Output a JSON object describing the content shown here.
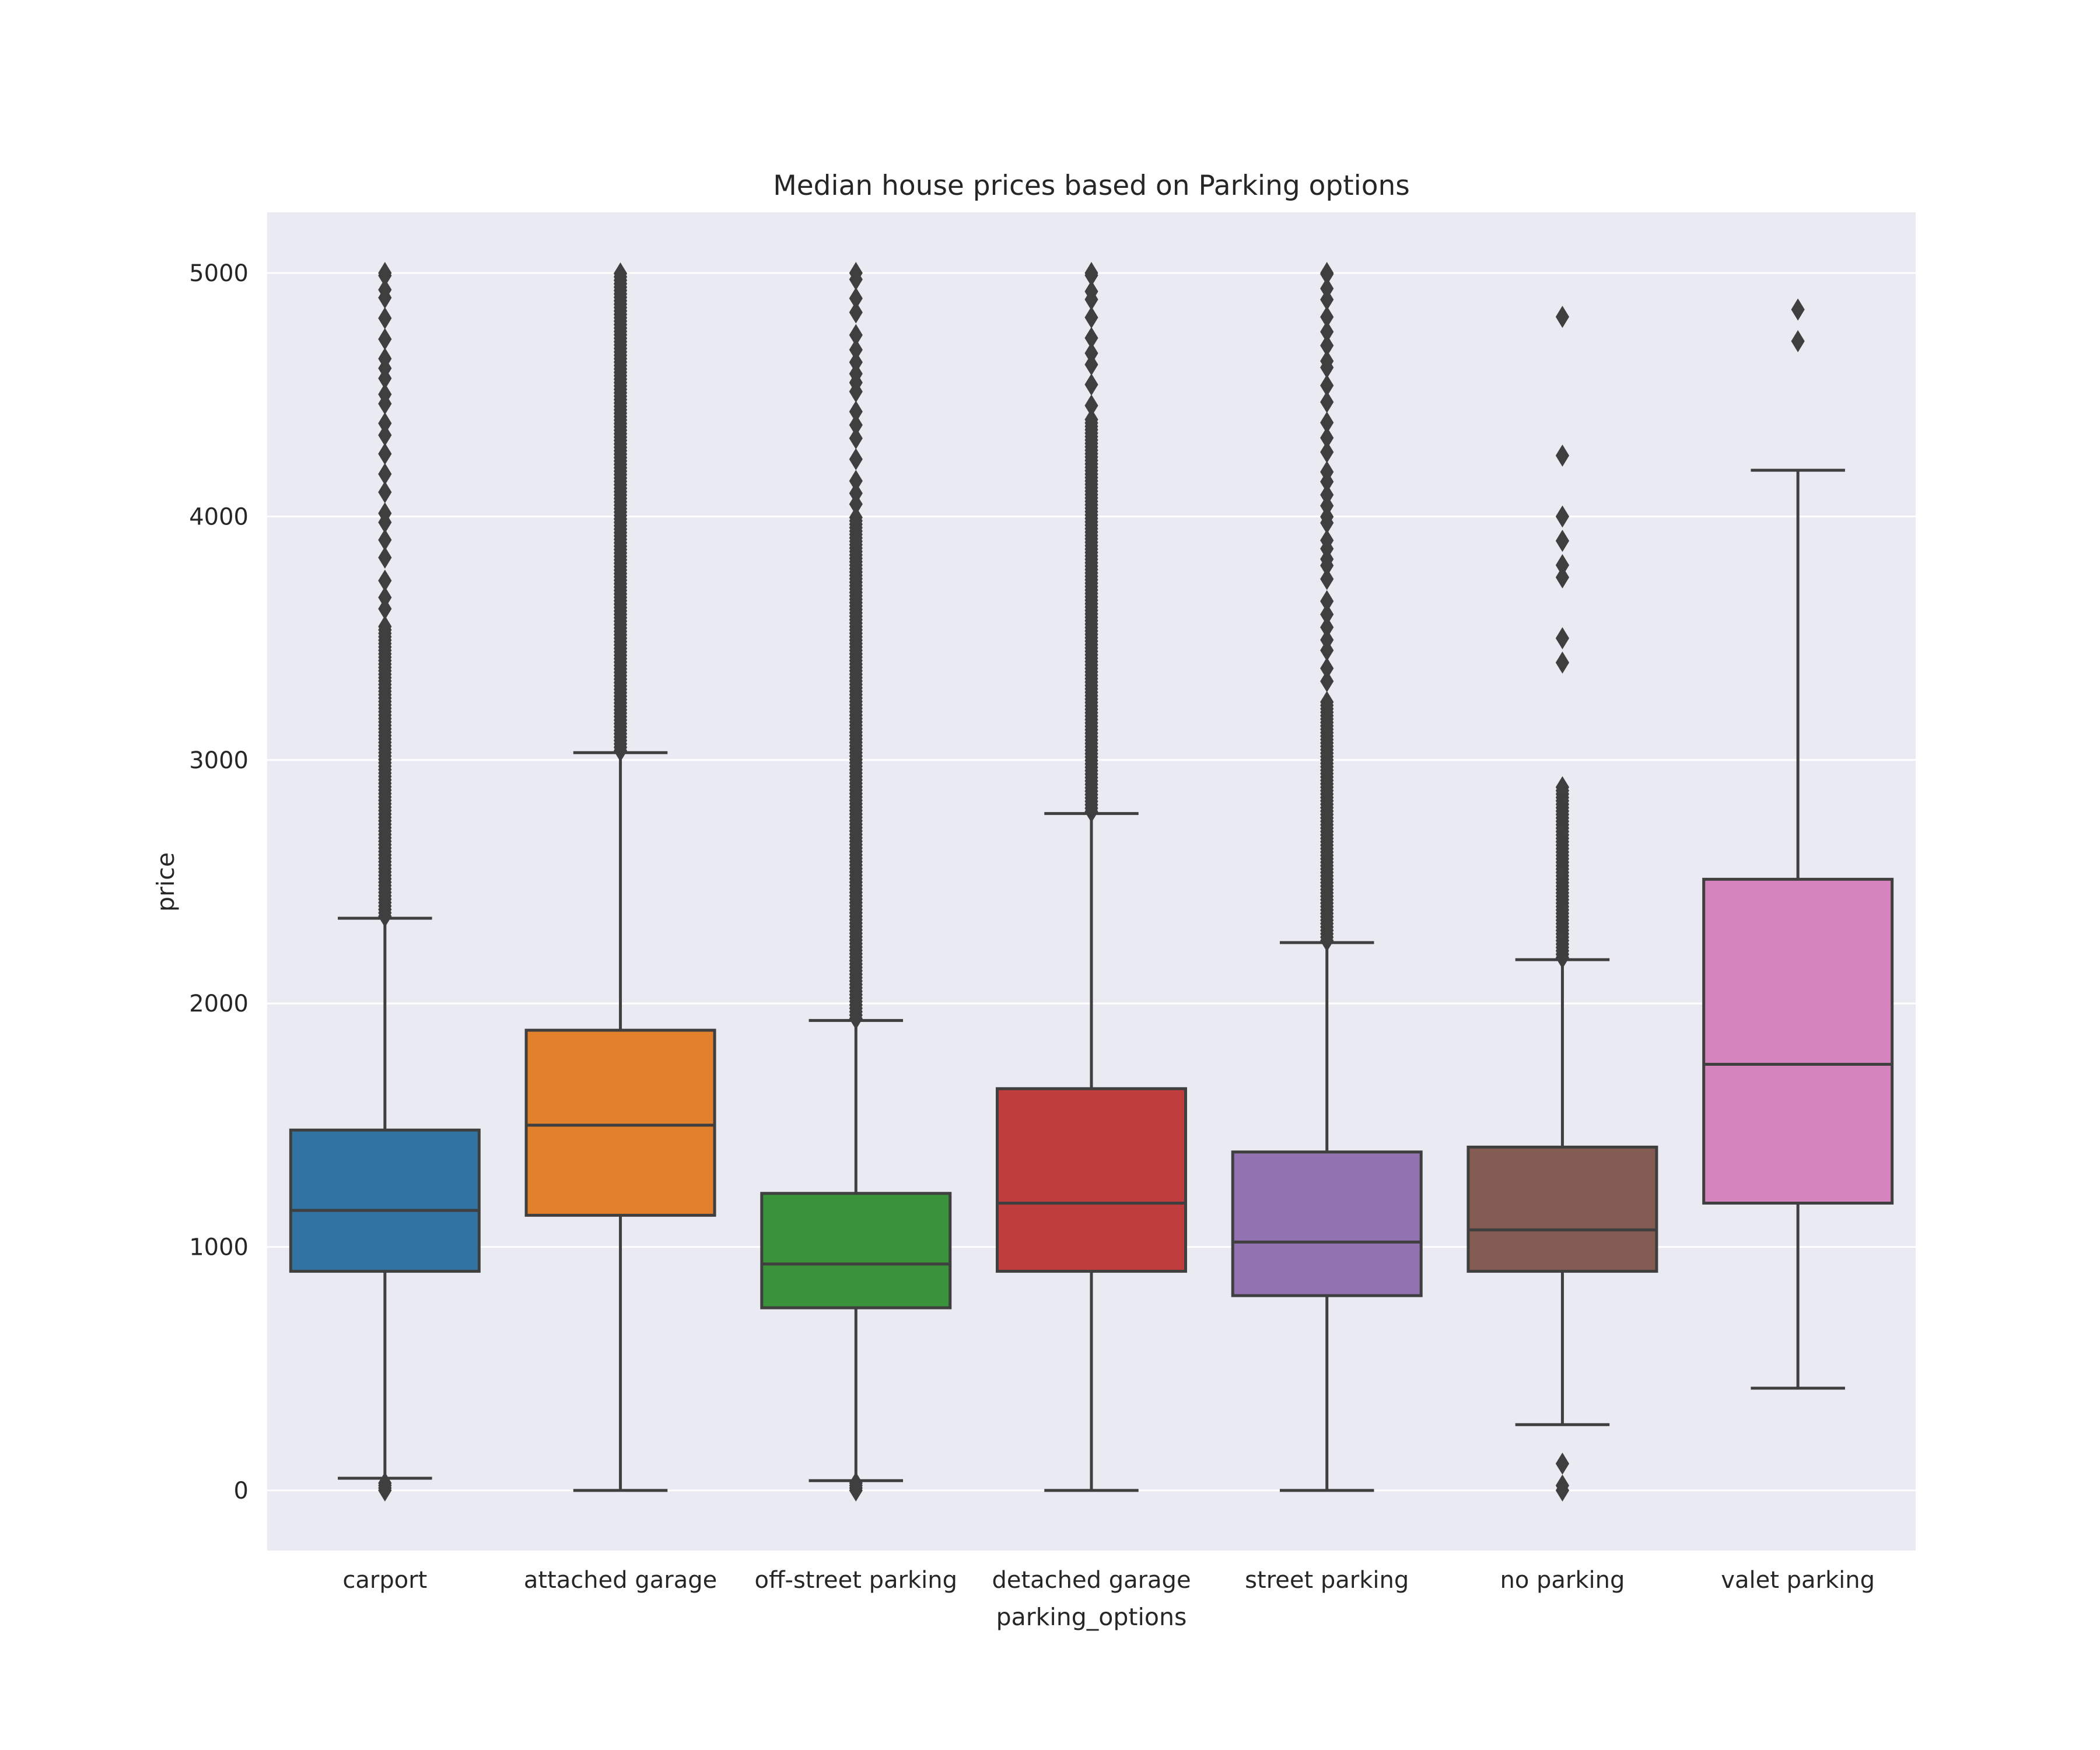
{
  "chart_data": {
    "type": "box",
    "title": "Median house prices based on Parking options",
    "xlabel": "parking_options",
    "ylabel": "price",
    "ylim": [
      -250,
      5250
    ],
    "yticks": [
      "0",
      "1000",
      "2000",
      "3000",
      "4000",
      "5000"
    ],
    "grid": true,
    "background": "#eaeaf2",
    "categories": [
      "carport",
      "attached garage",
      "off-street parking",
      "detached garage",
      "street parking",
      "no parking",
      "valet parking"
    ],
    "boxes": [
      {
        "category": "carport",
        "color": "#3274a1",
        "whisker_low": 50,
        "q1": 900,
        "median": 1150,
        "q3": 1480,
        "whisker_high": 2350,
        "outliers_low": [
          0,
          10,
          20,
          30
        ],
        "outliers_high_range": [
          2350,
          5000
        ],
        "outliers_high_dense_to": 3550
      },
      {
        "category": "attached garage",
        "color": "#e1812c",
        "whisker_low": 0,
        "q1": 1130,
        "median": 1500,
        "q3": 1890,
        "whisker_high": 3030,
        "outliers_low": [],
        "outliers_high_range": [
          3030,
          5000
        ],
        "outliers_high_dense_to": 5000
      },
      {
        "category": "off-street parking",
        "color": "#3a923a",
        "whisker_low": 40,
        "q1": 750,
        "median": 930,
        "q3": 1220,
        "whisker_high": 1930,
        "outliers_low": [
          0,
          10,
          20,
          30
        ],
        "outliers_high_range": [
          1930,
          5000
        ],
        "outliers_high_dense_to": 4000
      },
      {
        "category": "detached garage",
        "color": "#c03d3e",
        "whisker_low": 0,
        "q1": 900,
        "median": 1180,
        "q3": 1650,
        "whisker_high": 2780,
        "outliers_low": [],
        "outliers_high_range": [
          2780,
          5000
        ],
        "outliers_high_dense_to": 4400
      },
      {
        "category": "street parking",
        "color": "#9372b2",
        "whisker_low": 0,
        "q1": 800,
        "median": 1020,
        "q3": 1390,
        "whisker_high": 2250,
        "outliers_low": [],
        "outliers_high_range": [
          2250,
          5000
        ],
        "outliers_high_dense_to": 3250
      },
      {
        "category": "no parking",
        "color": "#845b53",
        "whisker_low": 270,
        "q1": 900,
        "median": 1070,
        "q3": 1410,
        "whisker_high": 2180,
        "outliers_low": [
          0,
          20,
          110
        ],
        "outliers_high_range": [
          2180,
          3200
        ],
        "outliers_high_dense_to": 2900,
        "outliers_high_extra": [
          3400,
          3500,
          3750,
          3800,
          3900,
          4000,
          4250,
          4820
        ]
      },
      {
        "category": "valet parking",
        "color": "#d684bd",
        "whisker_low": 420,
        "q1": 1180,
        "median": 1750,
        "q3": 2510,
        "whisker_high": 4190,
        "outliers_low": [],
        "outliers_high_range": [
          4720,
          4850
        ],
        "outliers_high_dense_to": 4720,
        "outliers_high_extra": [
          4720,
          4850
        ]
      }
    ]
  }
}
